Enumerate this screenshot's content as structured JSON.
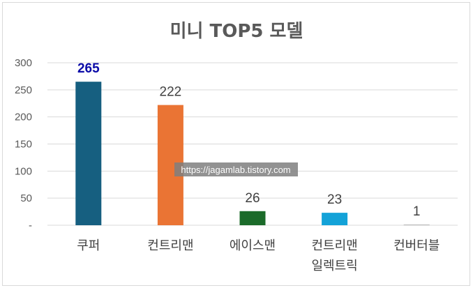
{
  "chart_data": {
    "type": "bar",
    "title": "미니 TOP5 모델",
    "categories": [
      "쿠퍼",
      "컨트리맨",
      "에이스맨",
      "컨트리맨\n일렉트릭",
      "컨버터블"
    ],
    "values": [
      265,
      222,
      26,
      23,
      1
    ],
    "data_labels": [
      "265",
      "222",
      "26",
      "23",
      "1"
    ],
    "bar_colors": [
      "#165f80",
      "#ea7434",
      "#1b6b2a",
      "#13a2d8",
      "#9e9e9e"
    ],
    "highlight_label_color": "#0b0ba8",
    "ylim": [
      0,
      300
    ],
    "yticks": [
      {
        "value": 0,
        "label": "-"
      },
      {
        "value": 50,
        "label": "50"
      },
      {
        "value": 100,
        "label": "100"
      },
      {
        "value": 150,
        "label": "150"
      },
      {
        "value": 200,
        "label": "200"
      },
      {
        "value": 250,
        "label": "250"
      },
      {
        "value": 300,
        "label": "300"
      }
    ],
    "grid": true,
    "legend": "none"
  },
  "watermark": "https://jagamlab.tistory.com"
}
